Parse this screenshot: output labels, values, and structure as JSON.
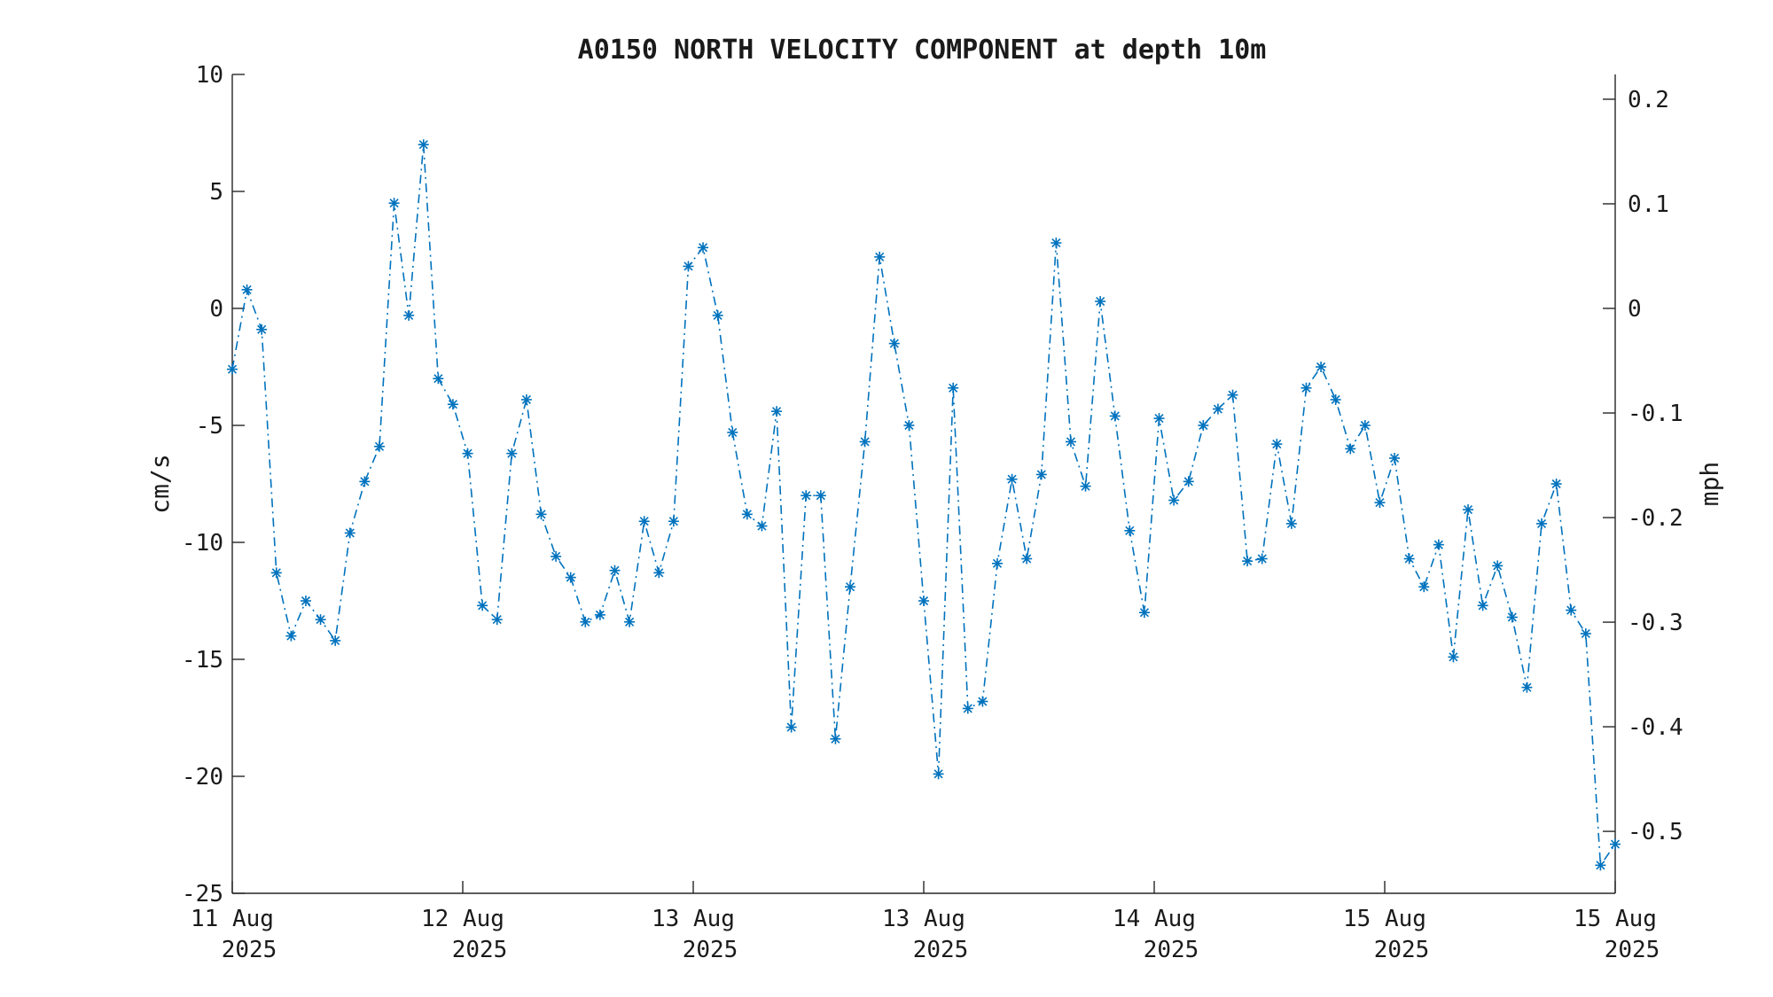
{
  "chart_data": {
    "type": "line",
    "title": "A0150 NORTH VELOCITY COMPONENT at depth 10m",
    "ylabel": "cm/s",
    "ylabel_right": "mph",
    "ylim": [
      -25,
      10
    ],
    "yticks": [
      10,
      5,
      0,
      -5,
      -10,
      -15,
      -20,
      -25
    ],
    "yticks_right": [
      0.2,
      0.1,
      0,
      -0.1,
      -0.2,
      -0.3,
      -0.4,
      -0.5
    ],
    "yticks_right_labels": [
      "0.2",
      "0.1",
      "0",
      "-0.1",
      "-0.2",
      "-0.3",
      "-0.4",
      "-0.5"
    ],
    "x_tick_labels": [
      {
        "day": "11 Aug",
        "year": "2025"
      },
      {
        "day": "12 Aug",
        "year": "2025"
      },
      {
        "day": "13 Aug",
        "year": "2025"
      },
      {
        "day": "13 Aug",
        "year": "2025"
      },
      {
        "day": "14 Aug",
        "year": "2025"
      },
      {
        "day": "15 Aug",
        "year": "2025"
      },
      {
        "day": "15 Aug",
        "year": "2025"
      }
    ],
    "grid": false,
    "marker": "asterisk",
    "line_style": "dash-dot",
    "color": "#0072BD",
    "series": [
      {
        "values": [
          -2.6,
          0.8,
          -0.9,
          -11.3,
          -14.0,
          -12.5,
          -13.3,
          -14.2,
          -9.6,
          -7.4,
          -5.9,
          4.5,
          -0.3,
          7.0,
          -3.0,
          -4.1,
          -6.2,
          -12.7,
          -13.3,
          -6.2,
          -3.9,
          -8.8,
          -10.6,
          -11.5,
          -13.4,
          -13.1,
          -11.2,
          -13.4,
          -9.1,
          -11.3,
          -9.1,
          1.8,
          2.6,
          -0.3,
          -5.3,
          -8.8,
          -9.3,
          -4.4,
          -17.9,
          -8.0,
          -8.0,
          -18.4,
          -11.9,
          -5.7,
          2.2,
          -1.5,
          -5.0,
          -12.5,
          -19.9,
          -3.4,
          -17.1,
          -16.8,
          -10.9,
          -7.3,
          -10.7,
          -7.1,
          2.8,
          -5.7,
          -7.6,
          0.3,
          -4.6,
          -9.5,
          -13.0,
          -4.7,
          -8.2,
          -7.4,
          -5.0,
          -4.3,
          -3.7,
          -10.8,
          -10.7,
          -5.8,
          -9.2,
          -3.4,
          -2.5,
          -3.9,
          -6.0,
          -5.0,
          -8.3,
          -6.4,
          -10.7,
          -11.9,
          -10.1,
          -14.9,
          -8.6,
          -12.7,
          -11.0,
          -13.2,
          -16.2,
          -9.2,
          -7.5,
          -12.9,
          -13.9,
          -23.8,
          -22.9
        ]
      }
    ]
  }
}
